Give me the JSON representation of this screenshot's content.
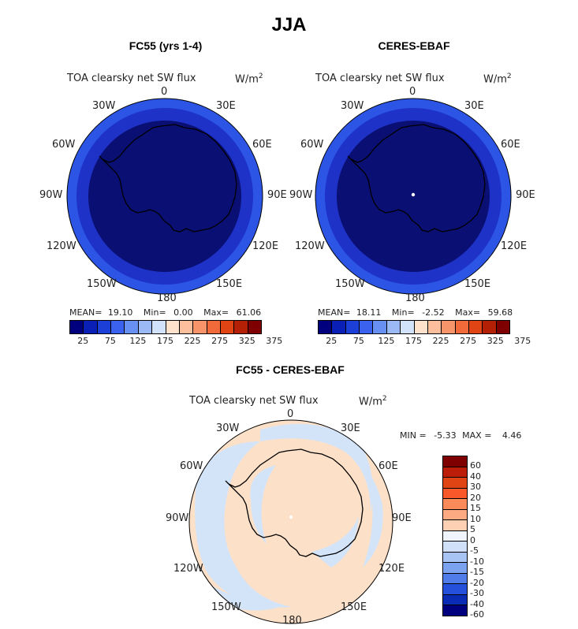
{
  "figure": {
    "title": "JJA"
  },
  "panels": [
    {
      "title": "FC55 (yrs 1-4)",
      "variable": "TOA clearsky net SW flux",
      "units_base": "W/m",
      "units_exp": "2",
      "stats": {
        "mean_label": "MEAN=",
        "mean": "19.10",
        "min_label": "Min=",
        "min": "0.00",
        "max_label": "Max=",
        "max": "61.06"
      },
      "colorbar_ticks": [
        "25",
        "75",
        "125",
        "175",
        "225",
        "275",
        "325",
        "375"
      ]
    },
    {
      "title": "CERES-EBAF",
      "variable": "TOA clearsky net SW flux",
      "units_base": "W/m",
      "units_exp": "2",
      "stats": {
        "mean_label": "MEAN=",
        "mean": "18.11",
        "min_label": "Min=",
        "min": "-2.52",
        "max_label": "Max=",
        "max": "59.68"
      },
      "colorbar_ticks": [
        "25",
        "75",
        "125",
        "175",
        "225",
        "275",
        "325",
        "375"
      ]
    },
    {
      "title": "FC55 - CERES-EBAF",
      "variable": "TOA clearsky net SW flux",
      "units_base": "W/m",
      "units_exp": "2",
      "stats": {
        "min_label": "MIN =",
        "min": "-5.33",
        "max_label": "MAX =",
        "max": "4.46"
      },
      "colorbar_ticks": [
        "60",
        "40",
        "30",
        "20",
        "15",
        "10",
        "5",
        "0",
        "-5",
        "-10",
        "-15",
        "-20",
        "-30",
        "-40",
        "-60"
      ]
    }
  ],
  "longitude_labels": {
    "top": "0",
    "upper_left": "30W",
    "upper_right": "30E",
    "left_upper": "60W",
    "right_upper": "60E",
    "left": "90W",
    "right": "90E",
    "left_lower": "120W",
    "right_lower": "120E",
    "lower_left": "150W",
    "lower_right": "150E",
    "bottom": "180"
  },
  "colors": {
    "seq_scale": [
      "#00007f",
      "#0a1fb5",
      "#1c3fd8",
      "#3a62ee",
      "#6890f2",
      "#9bbaf5",
      "#d2e2fb",
      "#ffe1cc",
      "#fcbe9c",
      "#f8946a",
      "#f26a3a",
      "#e04415",
      "#b32005",
      "#7f0000"
    ],
    "diff_scale": [
      "#7f0000",
      "#bb1d08",
      "#e04415",
      "#f8582a",
      "#fa8a5a",
      "#fcaa82",
      "#fdd0b4",
      "#f0f4ff",
      "#cfe0f8",
      "#a8c4f5",
      "#7ca3f0",
      "#4f7ce9",
      "#2550dc",
      "#0a2cb5",
      "#00007f"
    ],
    "dark_blue": "#0a0f73",
    "mid_blue": "#1e32c8",
    "rim_blue": "#2c55e6",
    "diff_pink": "#fde0c8",
    "diff_blue": "#d4e4f8"
  }
}
